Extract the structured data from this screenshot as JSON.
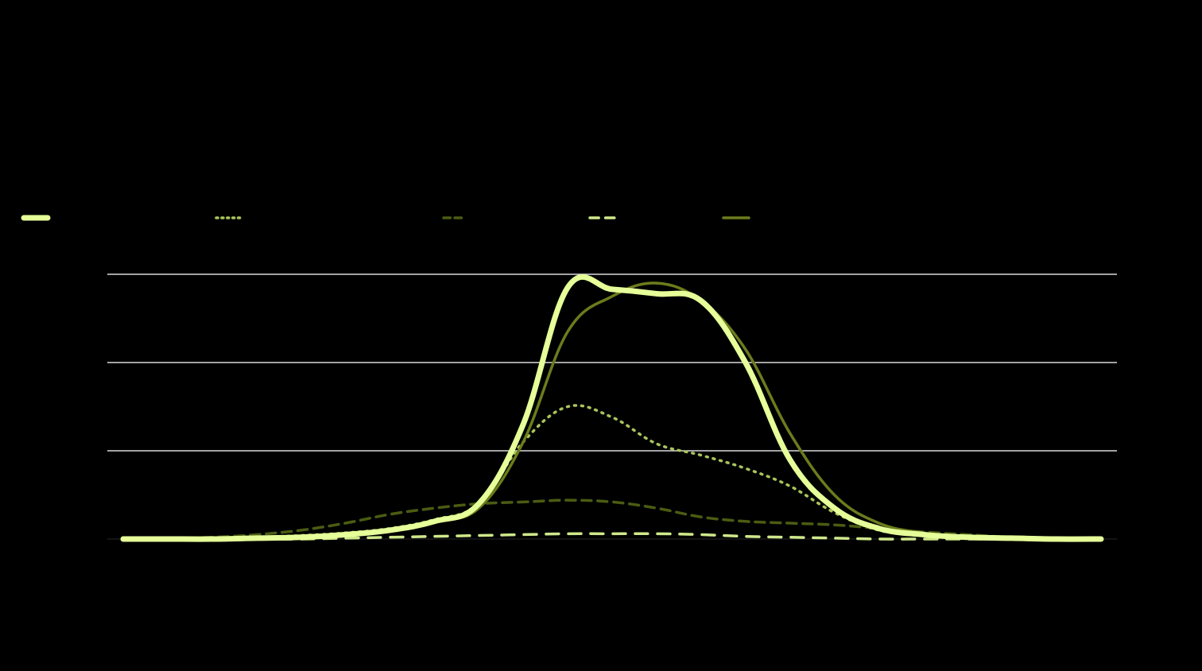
{
  "chart_data": {
    "type": "line",
    "title": "",
    "xlabel": "",
    "ylabel": "",
    "legend_position": "top-left",
    "grid": true,
    "ylim": [
      0,
      3
    ],
    "yticks": [
      0,
      1,
      2,
      3
    ],
    "x": [
      0,
      1,
      2,
      3,
      4,
      5,
      6,
      7,
      8,
      9,
      10,
      11,
      12,
      13,
      14,
      15,
      16,
      17,
      18,
      19,
      20,
      21,
      22
    ],
    "series": [
      {
        "key": "s1",
        "color": "#e6ff99",
        "width": 7,
        "dash": "",
        "values": [
          0.0,
          0.0,
          0.0,
          0.01,
          0.02,
          0.05,
          0.1,
          0.2,
          0.4,
          1.3,
          2.85,
          2.83,
          2.78,
          2.7,
          2.0,
          0.9,
          0.35,
          0.12,
          0.05,
          0.02,
          0.01,
          0.0,
          0.0
        ]
      },
      {
        "key": "s2",
        "color": "#a9c45c",
        "width": 3.5,
        "dash": "2 7",
        "values": [
          0.0,
          0.0,
          0.01,
          0.02,
          0.04,
          0.07,
          0.12,
          0.22,
          0.4,
          1.1,
          1.5,
          1.38,
          1.08,
          0.95,
          0.8,
          0.6,
          0.3,
          0.1,
          0.04,
          0.02,
          0.01,
          0.0,
          0.0
        ]
      },
      {
        "key": "s3",
        "color": "#4a5c12",
        "width": 3.5,
        "dash": "12 8",
        "values": [
          0.0,
          0.01,
          0.02,
          0.05,
          0.1,
          0.18,
          0.28,
          0.35,
          0.4,
          0.42,
          0.44,
          0.42,
          0.35,
          0.25,
          0.2,
          0.18,
          0.16,
          0.12,
          0.08,
          0.05,
          0.02,
          0.01,
          0.0
        ]
      },
      {
        "key": "s4",
        "color": "#cfe88a",
        "width": 3.5,
        "dash": "16 12",
        "values": [
          0.0,
          0.0,
          0.0,
          0.0,
          0.0,
          0.01,
          0.02,
          0.03,
          0.04,
          0.05,
          0.06,
          0.06,
          0.06,
          0.05,
          0.03,
          0.02,
          0.01,
          0.0,
          0.0,
          0.0,
          0.0,
          0.0,
          0.0
        ]
      },
      {
        "key": "s5",
        "color": "#6b7c1c",
        "width": 3.5,
        "dash": "",
        "values": [
          0.0,
          0.0,
          0.0,
          0.01,
          0.02,
          0.05,
          0.1,
          0.2,
          0.35,
          1.1,
          2.35,
          2.75,
          2.9,
          2.7,
          2.15,
          1.2,
          0.5,
          0.18,
          0.07,
          0.02,
          0.01,
          0.0,
          0.0
        ]
      }
    ]
  }
}
